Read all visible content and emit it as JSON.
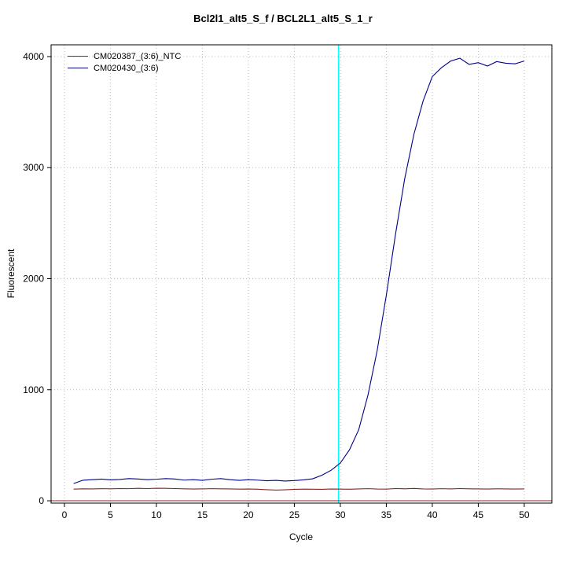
{
  "chart_data": {
    "type": "line",
    "title": "Bcl2l1_alt5_S_f / BCL2L1_alt5_S_1_r",
    "xlabel": "Cycle",
    "ylabel": "Fluorescent",
    "xlim": [
      -1.45,
      53
    ],
    "ylim": [
      -21,
      4106
    ],
    "xticks": [
      0,
      5,
      10,
      15,
      20,
      25,
      30,
      35,
      40,
      45,
      50
    ],
    "yticks": [
      0,
      1000,
      2000,
      3000,
      4000
    ],
    "grid": "dotted",
    "grid_color": "#bbbbbb",
    "legend_position": "top-left",
    "threshold_line": {
      "x": 29.8,
      "color": "#00ffff"
    },
    "baseline": {
      "y": 0,
      "color": "#8b2323"
    },
    "x": [
      1,
      2,
      3,
      4,
      5,
      6,
      7,
      8,
      9,
      10,
      11,
      12,
      13,
      14,
      15,
      16,
      17,
      18,
      19,
      20,
      21,
      22,
      23,
      24,
      25,
      26,
      27,
      28,
      29,
      30,
      31,
      32,
      33,
      34,
      35,
      36,
      37,
      38,
      39,
      40,
      41,
      42,
      43,
      44,
      45,
      46,
      47,
      48,
      49,
      50
    ],
    "series": [
      {
        "name": "CM020387_(3:6)_NTC",
        "color": "#8b2323",
        "values": [
          105,
          108,
          107,
          109,
          108,
          110,
          109,
          112,
          110,
          113,
          112,
          110,
          108,
          106,
          107,
          109,
          108,
          107,
          105,
          106,
          104,
          100,
          96,
          99,
          103,
          105,
          104,
          103,
          106,
          105,
          104,
          107,
          109,
          106,
          105,
          110,
          108,
          111,
          107,
          106,
          109,
          107,
          110,
          108,
          107,
          106,
          108,
          107,
          106,
          107
        ]
      },
      {
        "name": "CM020430_(3:6)",
        "color": "#00008b",
        "values": [
          155,
          185,
          190,
          195,
          188,
          192,
          200,
          196,
          190,
          194,
          200,
          196,
          186,
          190,
          184,
          194,
          200,
          190,
          184,
          190,
          186,
          180,
          184,
          178,
          182,
          188,
          198,
          230,
          275,
          340,
          460,
          640,
          950,
          1350,
          1850,
          2400,
          2900,
          3300,
          3600,
          3820,
          3900,
          3960,
          3985,
          3930,
          3945,
          3915,
          3955,
          3940,
          3935,
          3960
        ]
      }
    ]
  }
}
